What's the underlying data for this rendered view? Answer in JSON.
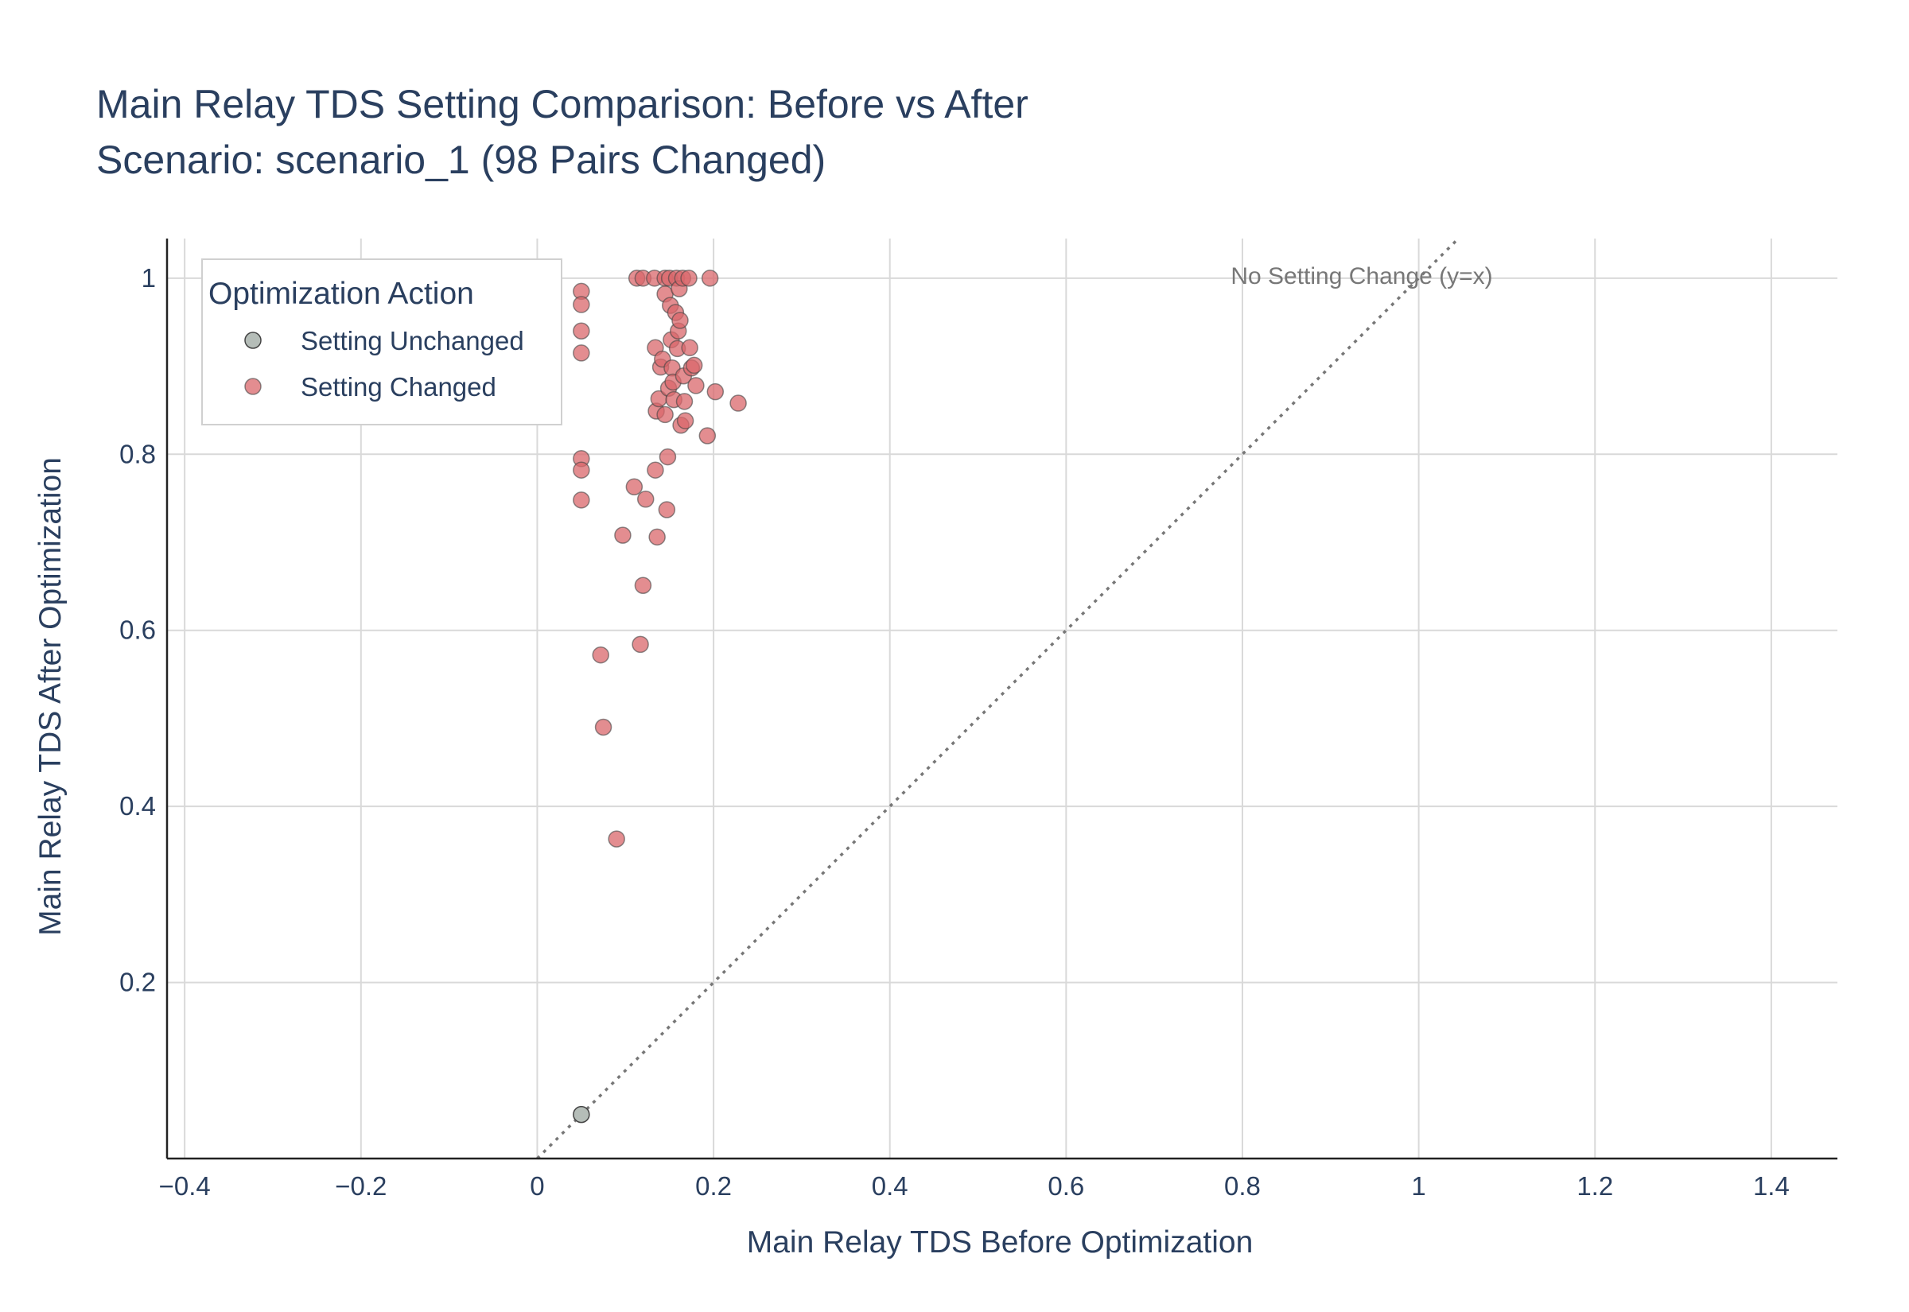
{
  "chart_data": {
    "type": "scatter",
    "title": "Main Relay TDS Setting Comparison: Before vs After",
    "subtitle": "Scenario: scenario_1 (98 Pairs Changed)",
    "xlabel": "Main Relay TDS Before Optimization",
    "ylabel": "Main Relay TDS After Optimization",
    "xlim": [
      -0.42,
      1.475
    ],
    "ylim": [
      0.0,
      1.045
    ],
    "x_ticks": [
      -0.4,
      -0.2,
      0,
      0.2,
      0.4,
      0.6,
      0.8,
      1,
      1.2,
      1.4
    ],
    "x_tick_labels": [
      "−0.4",
      "−0.2",
      "0",
      "0.2",
      "0.4",
      "0.6",
      "0.8",
      "1",
      "1.2",
      "1.4"
    ],
    "y_ticks": [
      0.2,
      0.4,
      0.6,
      0.8,
      1
    ],
    "y_tick_labels": [
      "0.2",
      "0.4",
      "0.6",
      "0.8",
      "1"
    ],
    "grid": true,
    "legend": {
      "title": "Optimization Action",
      "placement": "top-left",
      "entries": [
        "Setting Unchanged",
        "Setting Changed"
      ]
    },
    "reference_line": {
      "label": "No Setting Change (y=x)",
      "style": "dotted",
      "color": "#777777"
    },
    "colors": {
      "unchanged_fill": "#b5bdb8",
      "changed_fill": "#d9676b",
      "marker_edge": "#444444",
      "axis_text": "#2a3f5f",
      "grid": "#d9d9d9"
    },
    "series": [
      {
        "name": "Setting Unchanged",
        "points": [
          [
            0.05,
            0.05
          ]
        ]
      },
      {
        "name": "Setting Changed",
        "points": [
          [
            0.05,
            0.985
          ],
          [
            0.05,
            0.97
          ],
          [
            0.05,
            0.94
          ],
          [
            0.05,
            0.915
          ],
          [
            0.05,
            0.795
          ],
          [
            0.05,
            0.782
          ],
          [
            0.05,
            0.748
          ],
          [
            0.072,
            0.572
          ],
          [
            0.075,
            0.49
          ],
          [
            0.09,
            0.363
          ],
          [
            0.097,
            0.708
          ],
          [
            0.11,
            0.763
          ],
          [
            0.113,
            1.0
          ],
          [
            0.117,
            0.584
          ],
          [
            0.12,
            0.651
          ],
          [
            0.12,
            1.0
          ],
          [
            0.123,
            0.749
          ],
          [
            0.133,
            1.0
          ],
          [
            0.134,
            0.782
          ],
          [
            0.134,
            0.921
          ],
          [
            0.135,
            0.849
          ],
          [
            0.136,
            0.706
          ],
          [
            0.138,
            0.863
          ],
          [
            0.14,
            0.899
          ],
          [
            0.142,
            0.908
          ],
          [
            0.145,
            1.0
          ],
          [
            0.145,
            0.982
          ],
          [
            0.145,
            0.845
          ],
          [
            0.147,
            0.737
          ],
          [
            0.148,
            0.797
          ],
          [
            0.149,
            0.875
          ],
          [
            0.15,
            1.0
          ],
          [
            0.151,
            0.969
          ],
          [
            0.152,
            0.93
          ],
          [
            0.153,
            0.898
          ],
          [
            0.154,
            0.882
          ],
          [
            0.155,
            0.862
          ],
          [
            0.157,
            0.961
          ],
          [
            0.158,
            1.0
          ],
          [
            0.159,
            0.92
          ],
          [
            0.16,
            0.94
          ],
          [
            0.161,
            0.988
          ],
          [
            0.162,
            0.952
          ],
          [
            0.163,
            0.833
          ],
          [
            0.165,
            1.0
          ],
          [
            0.166,
            0.889
          ],
          [
            0.167,
            0.86
          ],
          [
            0.168,
            0.838
          ],
          [
            0.172,
            1.0
          ],
          [
            0.173,
            0.921
          ],
          [
            0.175,
            0.898
          ],
          [
            0.178,
            0.901
          ],
          [
            0.18,
            0.878
          ],
          [
            0.193,
            0.821
          ],
          [
            0.196,
            1.0
          ],
          [
            0.202,
            0.871
          ],
          [
            0.228,
            0.858
          ]
        ]
      }
    ]
  }
}
